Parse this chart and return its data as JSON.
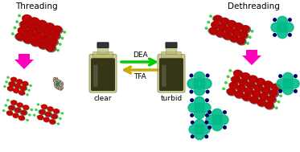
{
  "title_threading": "Threading",
  "title_dethreading": "Dethreading",
  "label_clear": "clear",
  "label_turbid": "turbid",
  "label_dea": "DEA",
  "label_tfa": "TFA",
  "arrow_dea_color": "#00cc00",
  "arrow_tfa_color": "#ccaa00",
  "pink_arrow_color": "#ff00bb",
  "pillar_color": "#00bb88",
  "rod_color_green": "#33cc33",
  "bead_color_red": "#cc0000",
  "bead_color_dark": "#111111",
  "bg_white": "#ffffff",
  "bottle_liquid_clear": "#444422",
  "bottle_liquid_turbid": "#111100"
}
